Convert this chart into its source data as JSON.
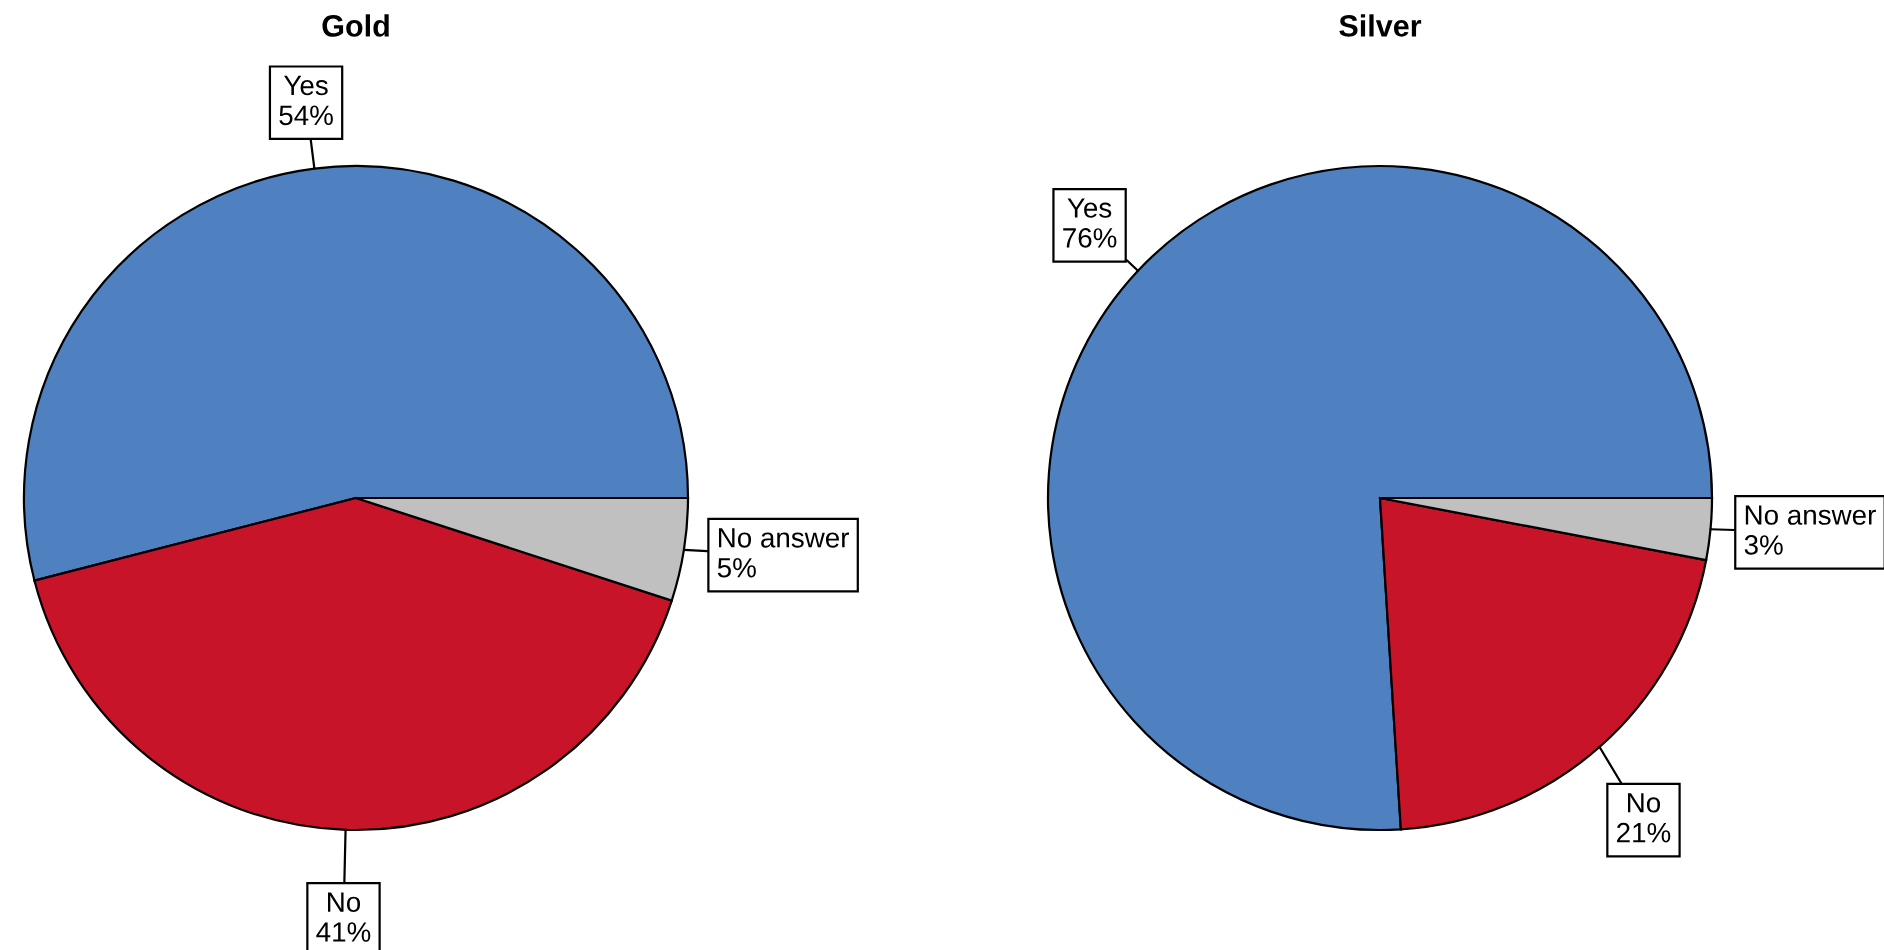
{
  "chart_data": [
    {
      "type": "pie",
      "title": "Gold",
      "categories": [
        "Yes",
        "No",
        "No answer"
      ],
      "values": [
        54,
        41,
        5
      ],
      "value_labels": [
        "54%",
        "41%",
        "5%"
      ],
      "colors": [
        "#4f81c1",
        "#c81428",
        "#c0c0c0"
      ]
    },
    {
      "type": "pie",
      "title": "Silver",
      "categories": [
        "Yes",
        "No",
        "No answer"
      ],
      "values": [
        76,
        21,
        3
      ],
      "value_labels": [
        "76%",
        "21%",
        "3%"
      ],
      "colors": [
        "#4f81c1",
        "#c81428",
        "#c0c0c0"
      ]
    }
  ]
}
